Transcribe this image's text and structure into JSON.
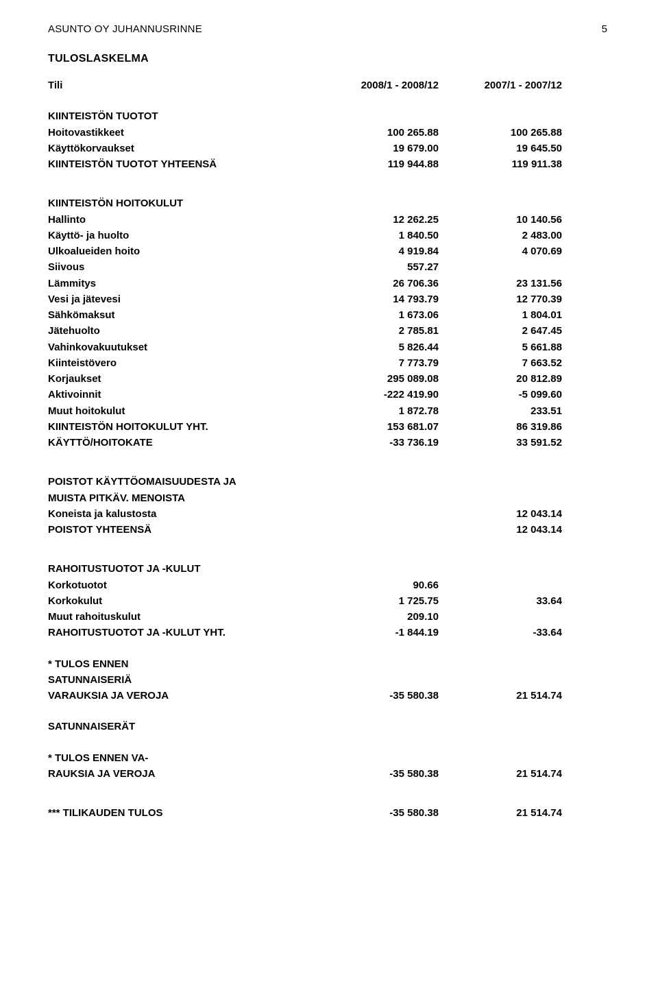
{
  "meta": {
    "company": "ASUNTO OY JUHANNUSRINNE",
    "page_number": "5"
  },
  "title": "TULOSLASKELMA",
  "columns": {
    "account": "Tili",
    "period1": "2008/1 - 2008/12",
    "period2": "2007/1 - 2007/12"
  },
  "section1": {
    "heading": "KIINTEISTÖN TUOTOT",
    "rows": [
      {
        "label": "Hoitovastikkeet",
        "v1": "100 265.88",
        "v2": "100 265.88"
      },
      {
        "label": "Käyttökorvaukset",
        "v1": "19 679.00",
        "v2": "19 645.50"
      }
    ],
    "total": {
      "label": "KIINTEISTÖN TUOTOT YHTEENSÄ",
      "v1": "119 944.88",
      "v2": "119 911.38"
    }
  },
  "section2": {
    "heading": "KIINTEISTÖN HOITOKULUT",
    "rows": [
      {
        "label": "Hallinto",
        "v1": "12 262.25",
        "v2": "10 140.56"
      },
      {
        "label": "Käyttö- ja huolto",
        "v1": "1 840.50",
        "v2": "2 483.00"
      },
      {
        "label": "Ulkoalueiden hoito",
        "v1": "4 919.84",
        "v2": "4 070.69"
      },
      {
        "label": "Siivous",
        "v1": "557.27",
        "v2": ""
      },
      {
        "label": "Lämmitys",
        "v1": "26 706.36",
        "v2": "23 131.56"
      },
      {
        "label": "Vesi ja jätevesi",
        "v1": "14 793.79",
        "v2": "12 770.39"
      },
      {
        "label": "Sähkömaksut",
        "v1": "1 673.06",
        "v2": "1 804.01"
      },
      {
        "label": "Jätehuolto",
        "v1": "2 785.81",
        "v2": "2 647.45"
      },
      {
        "label": "Vahinkovakuutukset",
        "v1": "5 826.44",
        "v2": "5 661.88"
      },
      {
        "label": "Kiinteistövero",
        "v1": "7 773.79",
        "v2": "7 663.52"
      },
      {
        "label": "Korjaukset",
        "v1": "295 089.08",
        "v2": "20 812.89"
      },
      {
        "label": "Aktivoinnit",
        "v1": "-222 419.90",
        "v2": "-5 099.60"
      },
      {
        "label": "Muut hoitokulut",
        "v1": "1 872.78",
        "v2": "233.51"
      }
    ],
    "total": {
      "label": "KIINTEISTÖN HOITOKULUT YHT.",
      "v1": "153 681.07",
      "v2": "86 319.86"
    },
    "margin": {
      "label": "KÄYTTÖ/HOITOKATE",
      "v1": "-33 736.19",
      "v2": "33 591.52"
    }
  },
  "section3": {
    "heading1": "POISTOT KÄYTTÖOMAISUUDESTA JA",
    "heading2": "MUISTA PITKÄV. MENOISTA",
    "rows": [
      {
        "label": "Koneista ja kalustosta",
        "v2": "12 043.14"
      }
    ],
    "total": {
      "label": "POISTOT YHTEENSÄ",
      "v2": "12 043.14"
    }
  },
  "section4": {
    "heading": "RAHOITUSTUOTOT JA -KULUT",
    "rows": [
      {
        "label": "Korkotuotot",
        "v1": "90.66",
        "v2": ""
      },
      {
        "label": "Korkokulut",
        "v1": "1 725.75",
        "v2": "33.64"
      },
      {
        "label": "Muut rahoituskulut",
        "v1": "209.10",
        "v2": ""
      }
    ],
    "total": {
      "label": "RAHOITUSTUOTOT JA -KULUT YHT.",
      "v1": "-1 844.19",
      "v2": "-33.64"
    }
  },
  "section5": {
    "heading1": "* TULOS ENNEN",
    "heading2": "SATUNNAISERIÄ",
    "row": {
      "label": "VARAUKSIA JA VEROJA",
      "v1": "-35 580.38",
      "v2": "21 514.74"
    }
  },
  "section6": {
    "heading": "SATUNNAISERÄT"
  },
  "section7": {
    "heading1": "* TULOS ENNEN VA-",
    "row": {
      "label": "RAUKSIA JA VEROJA",
      "v1": "-35 580.38",
      "v2": "21 514.74"
    }
  },
  "section8": {
    "row": {
      "label": "*** TILIKAUDEN TULOS",
      "v1": "-35 580.38",
      "v2": "21 514.74"
    }
  }
}
